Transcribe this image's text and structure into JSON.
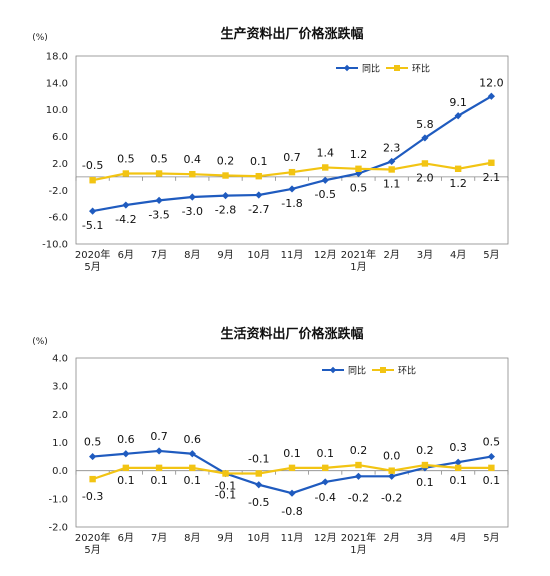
{
  "colors": {
    "yoy": "#1F5BBF",
    "mom": "#F2C413",
    "axis": "#888888",
    "text": "#111111"
  },
  "chart_data": [
    {
      "type": "line",
      "title": "生产资料出厂价格涨跌幅",
      "unit": "(%)",
      "ylim": [
        -10.0,
        18.0
      ],
      "yticks": [
        "18.0",
        "14.0",
        "10.0",
        "6.0",
        "2.0",
        "-2.0",
        "-6.0",
        "-10.0"
      ],
      "categories": [
        [
          "2020年",
          "5月"
        ],
        [
          "6月"
        ],
        [
          "7月"
        ],
        [
          "8月"
        ],
        [
          "9月"
        ],
        [
          "10月"
        ],
        [
          "11月"
        ],
        [
          "12月"
        ],
        [
          "2021年",
          "1月"
        ],
        [
          "2月"
        ],
        [
          "3月"
        ],
        [
          "4月"
        ],
        [
          "5月"
        ]
      ],
      "legend": [
        "同比",
        "环比"
      ],
      "series": [
        {
          "name": "同比",
          "values": [
            -5.1,
            -4.2,
            -3.5,
            -3.0,
            -2.8,
            -2.7,
            -1.8,
            -0.5,
            0.5,
            2.3,
            5.8,
            9.1,
            12.0
          ],
          "labels": [
            "-5.1",
            "-4.2",
            "-3.5",
            "-3.0",
            "-2.8",
            "-2.7",
            "-1.8",
            "-0.5",
            "0.5",
            "2.3",
            "5.8",
            "9.1",
            "12.0"
          ]
        },
        {
          "name": "环比",
          "values": [
            -0.5,
            0.5,
            0.5,
            0.4,
            0.2,
            0.1,
            0.7,
            1.4,
            1.2,
            1.1,
            2.0,
            1.2,
            2.1
          ],
          "labels": [
            "-0.5",
            "0.5",
            "0.5",
            "0.4",
            "0.2",
            "0.1",
            "0.7",
            "1.4",
            "1.2",
            "1.1",
            "2.0",
            "1.2",
            "2.1"
          ]
        }
      ]
    },
    {
      "type": "line",
      "title": "生活资料出厂价格涨跌幅",
      "unit": "(%)",
      "ylim": [
        -2.0,
        4.0
      ],
      "yticks": [
        "4.0",
        "3.0",
        "2.0",
        "1.0",
        "0.0",
        "-1.0",
        "-2.0"
      ],
      "categories": [
        [
          "2020年",
          "5月"
        ],
        [
          "6月"
        ],
        [
          "7月"
        ],
        [
          "8月"
        ],
        [
          "9月"
        ],
        [
          "10月"
        ],
        [
          "11月"
        ],
        [
          "12月"
        ],
        [
          "2021年",
          "1月"
        ],
        [
          "2月"
        ],
        [
          "3月"
        ],
        [
          "4月"
        ],
        [
          "5月"
        ]
      ],
      "legend": [
        "同比",
        "环比"
      ],
      "series": [
        {
          "name": "同比",
          "values": [
            0.5,
            0.6,
            0.7,
            0.6,
            -0.1,
            -0.5,
            -0.8,
            -0.4,
            -0.2,
            -0.2,
            0.1,
            0.3,
            0.5
          ],
          "labels": [
            "0.5",
            "0.6",
            "0.7",
            "0.6",
            "-0.1",
            "-0.5",
            "-0.8",
            "-0.4",
            "-0.2",
            "-0.2",
            "0.1",
            "0.3",
            "0.5"
          ]
        },
        {
          "name": "环比",
          "values": [
            -0.3,
            0.1,
            0.1,
            0.1,
            -0.1,
            -0.1,
            0.1,
            0.1,
            0.2,
            0.0,
            0.2,
            0.1,
            0.1
          ],
          "labels": [
            "-0.3",
            "0.1",
            "0.1",
            "0.1",
            "-0.1",
            "-0.1",
            "0.1",
            "0.1",
            "0.2",
            "0.0",
            "0.2",
            "0.1",
            "0.1"
          ]
        }
      ]
    }
  ]
}
